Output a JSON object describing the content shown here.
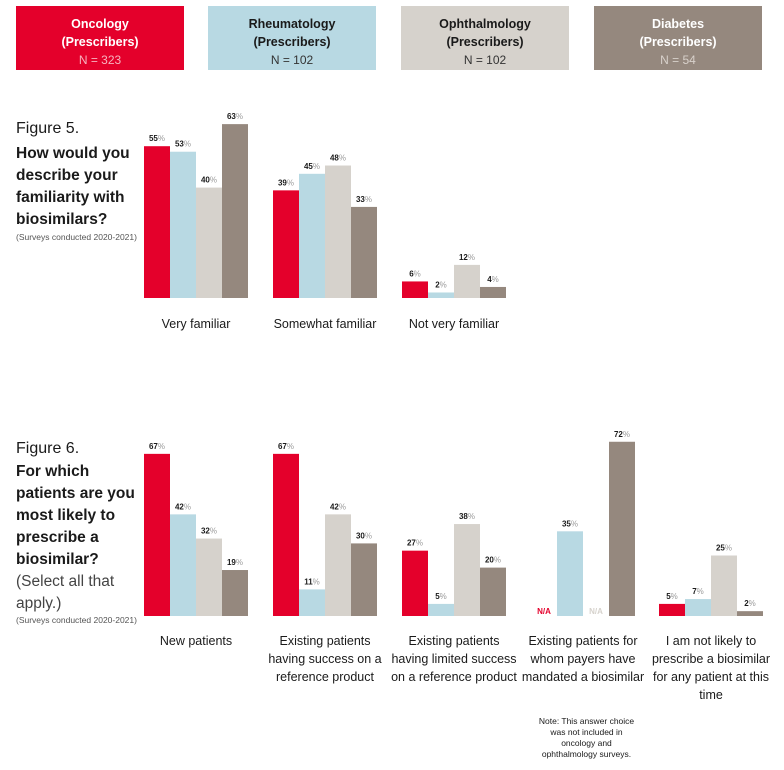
{
  "legend": [
    {
      "name": "Oncology",
      "sub": "(Prescribers)",
      "n": "N = 323",
      "color": "#e4002b",
      "text_color": "#ffffff",
      "n_color": "#f6b3bf"
    },
    {
      "name": "Rheumatology",
      "sub": "(Prescribers)",
      "n": "N = 102",
      "color": "#b8d9e3",
      "text_color": "#1a1a1a",
      "n_color": "#333333"
    },
    {
      "name": "Ophthalmology",
      "sub": "(Prescribers)",
      "n": "N = 102",
      "color": "#d6d2cc",
      "text_color": "#1a1a1a",
      "n_color": "#333333"
    },
    {
      "name": "Diabetes",
      "sub": "(Prescribers)",
      "n": "N = 54",
      "color": "#95887e",
      "text_color": "#ffffff",
      "n_color": "#d8d1cb"
    }
  ],
  "figure5": {
    "number": "Figure 5.",
    "question": "How would you describe your familiarity with biosimilars?",
    "note": "(Surveys conducted 2020-2021)"
  },
  "figure6": {
    "number": "Figure 6.",
    "question": "For which patients are you most likely to prescribe a biosimilar?",
    "select": "(Select all that apply.)",
    "note": "(Surveys conducted 2020-2021)",
    "answer_note": "Note: This answer choice was not included in oncology and ophthalmology surveys."
  },
  "chart_data": [
    {
      "type": "bar",
      "title": "Figure 5. How would you describe your familiarity with biosimilars?",
      "categories": [
        "Very familiar",
        "Somewhat familiar",
        "Not very familiar"
      ],
      "series": [
        {
          "name": "Oncology",
          "values": [
            55,
            39,
            6
          ]
        },
        {
          "name": "Rheumatology",
          "values": [
            53,
            45,
            2
          ]
        },
        {
          "name": "Ophthalmology",
          "values": [
            40,
            48,
            12
          ]
        },
        {
          "name": "Diabetes",
          "values": [
            63,
            33,
            4
          ]
        }
      ],
      "unit": "%",
      "ylim": [
        0,
        63
      ]
    },
    {
      "type": "bar",
      "title": "Figure 6. For which patients are you most likely to prescribe a biosimilar?",
      "categories": [
        "New patients",
        "Existing patients having success on a reference product",
        "Existing patients having limited success on a reference product",
        "Existing patients for whom payers have mandated a biosimilar",
        "I am not likely to prescribe a biosimilar for any patient at this time"
      ],
      "series": [
        {
          "name": "Oncology",
          "values": [
            67,
            67,
            27,
            null,
            5
          ]
        },
        {
          "name": "Rheumatology",
          "values": [
            42,
            11,
            5,
            35,
            7
          ]
        },
        {
          "name": "Ophthalmology",
          "values": [
            32,
            42,
            38,
            null,
            25
          ]
        },
        {
          "name": "Diabetes",
          "values": [
            19,
            30,
            20,
            72,
            2
          ]
        }
      ],
      "unit": "%",
      "na_label": "N/A",
      "ylim": [
        0,
        72
      ]
    }
  ]
}
